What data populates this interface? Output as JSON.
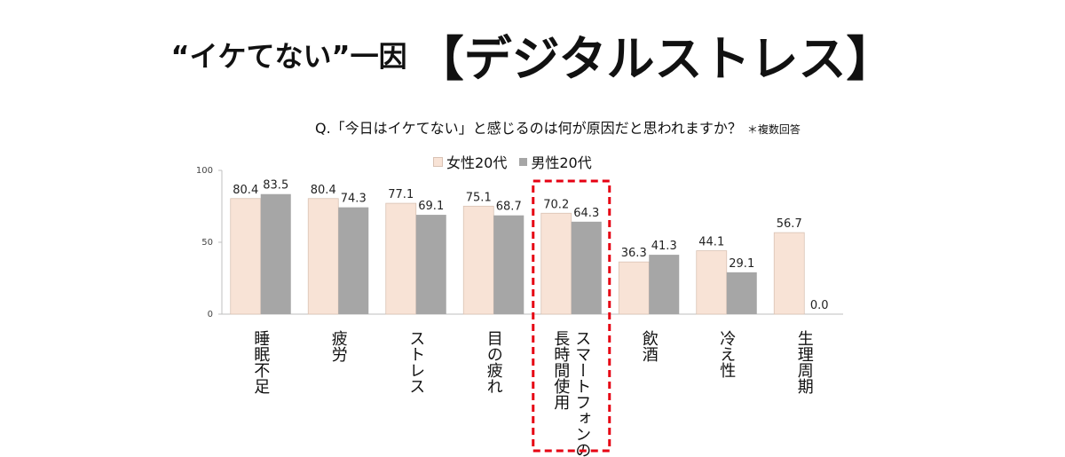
{
  "title": {
    "prefix": "“イケてない”一因",
    "main": "【デジタルストレス】"
  },
  "question": {
    "text": "Q.「今日はイケてない」と感じるのは何が原因だと思われますか？",
    "note": "＊複数回答"
  },
  "colors": {
    "female": "#f8e3d6",
    "female_border": "#d9c2b4",
    "male": "#a6a6a6",
    "highlight": "#e60012",
    "axis": "#bfbfbf"
  },
  "chart_data": {
    "type": "bar",
    "categories": [
      "睡眠不足",
      "疲労",
      "ストレス",
      "目の疲れ",
      "スマートフォンの長時間使用",
      "飲酒",
      "冷え性",
      "生理周期"
    ],
    "category_lines": [
      [
        "睡眠不足"
      ],
      [
        "疲労"
      ],
      [
        "ストレス"
      ],
      [
        "目の疲れ"
      ],
      [
        "スマートフォンの",
        "長時間使用"
      ],
      [
        "飲酒"
      ],
      [
        "冷え性"
      ],
      [
        "生理周期"
      ]
    ],
    "series": [
      {
        "name": "女性20代",
        "values": [
          80.4,
          80.4,
          77.1,
          75.1,
          70.2,
          36.3,
          44.1,
          56.7
        ]
      },
      {
        "name": "男性20代",
        "values": [
          83.5,
          74.3,
          69.1,
          68.7,
          64.3,
          41.3,
          29.1,
          0.0
        ]
      }
    ],
    "data_labels": [
      [
        "80.4",
        "80.4",
        "77.1",
        "75.1",
        "70.2",
        "36.3",
        "44.1",
        "56.7"
      ],
      [
        "83.5",
        "74.3",
        "69.1",
        "68.7",
        "64.3",
        "41.3",
        "29.1",
        "0.0"
      ]
    ],
    "ylim": [
      0,
      100
    ],
    "yticks": [
      "0",
      "50",
      "100"
    ],
    "highlight_index": 4,
    "legend_position": "top",
    "grid": false
  }
}
